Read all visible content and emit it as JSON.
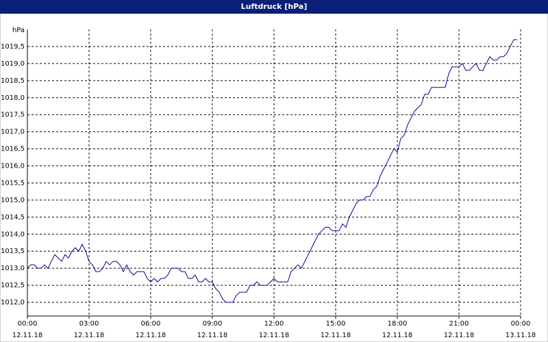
{
  "chart_data": {
    "type": "line",
    "title": "Luftdruck [hPa]",
    "y_label": "hPa",
    "grid": true,
    "xlim": [
      0,
      1440
    ],
    "ylim": [
      1011.6,
      1020
    ],
    "xticks": [
      {
        "value": 0,
        "label": "00:00"
      },
      {
        "value": 180,
        "label": "03:00"
      },
      {
        "value": 360,
        "label": "06:00"
      },
      {
        "value": 540,
        "label": "09:00"
      },
      {
        "value": 720,
        "label": "12:00"
      },
      {
        "value": 900,
        "label": "15:00"
      },
      {
        "value": 1080,
        "label": "18:00"
      },
      {
        "value": 1260,
        "label": "21:00"
      },
      {
        "value": 1440,
        "label": "00:00"
      }
    ],
    "xtick_dates": [
      "12.11.18",
      "12.11.18",
      "12.11.18",
      "12.11.18",
      "12.11.18",
      "12.11.18",
      "12.11.18",
      "12.11.18",
      "13.11.18"
    ],
    "yticks": [
      {
        "value": 1012,
        "label": "1012,0"
      },
      {
        "value": 1012.5,
        "label": "1012,5"
      },
      {
        "value": 1013,
        "label": "1013,0"
      },
      {
        "value": 1013.5,
        "label": "1013,5"
      },
      {
        "value": 1014,
        "label": "1014,0"
      },
      {
        "value": 1014.5,
        "label": "1014,5"
      },
      {
        "value": 1015,
        "label": "1015,0"
      },
      {
        "value": 1015.5,
        "label": "1015,5"
      },
      {
        "value": 1016,
        "label": "1016,0"
      },
      {
        "value": 1016.5,
        "label": "1016,5"
      },
      {
        "value": 1017,
        "label": "1017,0"
      },
      {
        "value": 1017.5,
        "label": "1017,5"
      },
      {
        "value": 1018,
        "label": "1018,0"
      },
      {
        "value": 1018.5,
        "label": "1018,5"
      },
      {
        "value": 1019,
        "label": "1019,0"
      },
      {
        "value": 1019.5,
        "label": "1019,5"
      }
    ],
    "x": [
      0,
      10,
      20,
      30,
      40,
      50,
      60,
      70,
      80,
      90,
      100,
      110,
      120,
      130,
      140,
      150,
      160,
      170,
      180,
      190,
      200,
      210,
      220,
      230,
      240,
      250,
      260,
      270,
      280,
      290,
      300,
      310,
      320,
      330,
      340,
      350,
      360,
      370,
      380,
      390,
      400,
      410,
      420,
      430,
      440,
      450,
      460,
      470,
      480,
      490,
      500,
      510,
      520,
      530,
      540,
      550,
      560,
      570,
      580,
      590,
      600,
      610,
      620,
      630,
      640,
      650,
      660,
      670,
      680,
      690,
      700,
      710,
      720,
      730,
      740,
      750,
      760,
      770,
      780,
      790,
      800,
      810,
      820,
      830,
      840,
      850,
      860,
      870,
      880,
      890,
      900,
      910,
      920,
      930,
      940,
      950,
      960,
      970,
      980,
      990,
      1000,
      1010,
      1020,
      1030,
      1040,
      1050,
      1060,
      1070,
      1080,
      1090,
      1100,
      1110,
      1120,
      1130,
      1140,
      1150,
      1160,
      1170,
      1180,
      1190,
      1200,
      1210,
      1220,
      1230,
      1240,
      1250,
      1260,
      1270,
      1280,
      1290,
      1300,
      1310,
      1320,
      1330,
      1340,
      1350,
      1360,
      1370,
      1380,
      1390,
      1400,
      1410,
      1420,
      1430
    ],
    "series": [
      {
        "color": "#00008b",
        "values": [
          1013.0,
          1013.1,
          1013.1,
          1013.0,
          1013.0,
          1013.1,
          1013.0,
          1013.2,
          1013.4,
          1013.3,
          1013.2,
          1013.4,
          1013.3,
          1013.5,
          1013.6,
          1013.5,
          1013.7,
          1013.5,
          1013.2,
          1013.1,
          1012.9,
          1012.9,
          1013.0,
          1013.2,
          1013.1,
          1013.2,
          1013.2,
          1013.1,
          1012.9,
          1013.1,
          1012.9,
          1012.8,
          1012.9,
          1012.9,
          1012.9,
          1012.7,
          1012.6,
          1012.7,
          1012.6,
          1012.7,
          1012.7,
          1012.8,
          1013.0,
          1013.0,
          1013.0,
          1012.9,
          1012.9,
          1012.7,
          1012.7,
          1012.8,
          1012.6,
          1012.6,
          1012.7,
          1012.6,
          1012.6,
          1012.4,
          1012.3,
          1012.1,
          1012.0,
          1012.0,
          1012.0,
          1012.2,
          1012.3,
          1012.3,
          1012.3,
          1012.5,
          1012.5,
          1012.6,
          1012.5,
          1012.5,
          1012.5,
          1012.6,
          1012.7,
          1012.6,
          1012.6,
          1012.6,
          1012.6,
          1012.9,
          1013.0,
          1013.1,
          1013.0,
          1013.2,
          1013.4,
          1013.6,
          1013.8,
          1014.0,
          1014.1,
          1014.2,
          1014.2,
          1014.1,
          1014.1,
          1014.1,
          1014.3,
          1014.2,
          1014.5,
          1014.7,
          1014.9,
          1015.0,
          1015.0,
          1015.1,
          1015.1,
          1015.3,
          1015.4,
          1015.7,
          1015.9,
          1016.1,
          1016.3,
          1016.5,
          1016.4,
          1016.8,
          1016.9,
          1017.2,
          1017.4,
          1017.6,
          1017.7,
          1017.8,
          1018.1,
          1018.1,
          1018.3,
          1018.3,
          1018.3,
          1018.3,
          1018.3,
          1018.7,
          1018.9,
          1018.9,
          1018.9,
          1019.0,
          1018.8,
          1018.8,
          1018.9,
          1019.0,
          1018.8,
          1018.8,
          1019.0,
          1019.2,
          1019.1,
          1019.1,
          1019.2,
          1019.2,
          1019.3,
          1019.5,
          1019.7,
          1019.7
        ]
      }
    ]
  }
}
